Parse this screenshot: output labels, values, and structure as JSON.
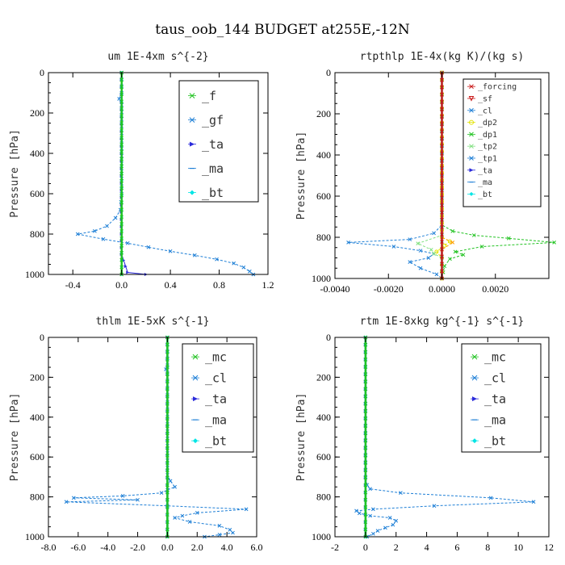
{
  "title": "taus_oob_144  BUDGET at255E,-12N",
  "chart_data": [
    {
      "type": "line",
      "title": "um  1E-4xm s^{-2}",
      "ylabel": "Pressure [hPa]",
      "xlim": [
        -0.6,
        1.2
      ],
      "ylim": [
        1000,
        0
      ],
      "xticks": [
        -0.4,
        0.0,
        0.4,
        0.8,
        1.2
      ],
      "xtick_labels": [
        "-0.4",
        "0.0",
        "0.4",
        "0.8",
        "1.2"
      ],
      "yticks": [
        0,
        200,
        400,
        600,
        800,
        1000
      ],
      "ytick_labels": [
        "0",
        "200",
        "400",
        "600",
        "800",
        "1000"
      ],
      "legend_placement": "top-right",
      "legend_entries": [
        "_f",
        "_gf",
        "_ta",
        "_ma",
        "_bt"
      ],
      "series": [
        {
          "name": "_gf",
          "color": "#1e7fd6",
          "dashed": true,
          "points": [
            [
              0.0,
              0
            ],
            [
              0.0,
              100
            ],
            [
              -0.02,
              130
            ],
            [
              0.0,
              160
            ],
            [
              0.0,
              300
            ],
            [
              0.0,
              600
            ],
            [
              -0.01,
              680
            ],
            [
              -0.05,
              720
            ],
            [
              -0.12,
              760
            ],
            [
              -0.22,
              785
            ],
            [
              -0.36,
              800
            ],
            [
              -0.15,
              825
            ],
            [
              0.05,
              845
            ],
            [
              0.22,
              865
            ],
            [
              0.4,
              885
            ],
            [
              0.6,
              905
            ],
            [
              0.78,
              925
            ],
            [
              0.92,
              945
            ],
            [
              1.0,
              965
            ],
            [
              1.05,
              985
            ],
            [
              1.08,
              1000
            ]
          ]
        },
        {
          "name": "_ta",
          "color": "#2b2bdb",
          "dashed": false,
          "points": [
            [
              0.0,
              0
            ],
            [
              0.0,
              800
            ],
            [
              0.0,
              900
            ],
            [
              0.05,
              990
            ],
            [
              0.2,
              1000
            ]
          ]
        },
        {
          "name": "_bt",
          "color": "#00e5e5",
          "dashed": false,
          "points": [
            [
              0.0,
              0
            ],
            [
              0.0,
              1000
            ]
          ]
        },
        {
          "name": "_f",
          "color": "#22c322",
          "dashed": false,
          "points": [
            [
              0.0,
              0
            ],
            [
              0.0,
              1000
            ]
          ]
        }
      ]
    },
    {
      "type": "line",
      "title": "rtpthlp  1E-4x(kg K)/(kg s)",
      "ylabel": "Pressure [hPa]",
      "xlim": [
        -0.004,
        0.004
      ],
      "ylim": [
        1000,
        0
      ],
      "xticks": [
        -0.004,
        -0.002,
        0.0,
        0.002
      ],
      "xtick_labels": [
        "-0.0040",
        "-0.0020",
        "0.0000",
        "0.0020"
      ],
      "yticks": [
        0,
        200,
        400,
        600,
        800,
        1000
      ],
      "ytick_labels": [
        "0",
        "200",
        "400",
        "600",
        "800",
        "1000"
      ],
      "legend_placement": "top-right",
      "legend_entries": [
        "_forcing",
        "_sf",
        "_cl",
        "_dp2",
        "_dp1",
        "_tp2",
        "_tp1",
        "_ta",
        "_ma",
        "_bt"
      ],
      "series": [
        {
          "name": "_dp1",
          "color": "#22c322",
          "dashed": true,
          "points": [
            [
              0.0,
              0
            ],
            [
              0.0,
              740
            ],
            [
              0.0004,
              770
            ],
            [
              0.0012,
              790
            ],
            [
              0.0025,
              805
            ],
            [
              0.0042,
              825
            ],
            [
              0.0015,
              845
            ],
            [
              0.0005,
              870
            ],
            [
              0.0008,
              885
            ],
            [
              0.0003,
              905
            ],
            [
              0.0001,
              940
            ],
            [
              0.0,
              1000
            ]
          ]
        },
        {
          "name": "_tp1",
          "color": "#1e7fd6",
          "dashed": true,
          "points": [
            [
              0.0,
              0
            ],
            [
              0.0,
              740
            ],
            [
              -0.0003,
              780
            ],
            [
              -0.0012,
              810
            ],
            [
              -0.0035,
              825
            ],
            [
              -0.0018,
              845
            ],
            [
              -0.0008,
              865
            ],
            [
              -0.0003,
              880
            ],
            [
              -0.0005,
              900
            ],
            [
              -0.0012,
              920
            ],
            [
              -0.0008,
              950
            ],
            [
              -0.0002,
              980
            ],
            [
              0.0,
              1000
            ]
          ]
        },
        {
          "name": "_dp2",
          "color": "#e3e300",
          "dashed": true,
          "points": [
            [
              0.0,
              0
            ],
            [
              0.0,
              800
            ],
            [
              0.0003,
              820
            ],
            [
              0.0001,
              840
            ],
            [
              -0.0002,
              870
            ],
            [
              0.0,
              900
            ],
            [
              0.0,
              1000
            ]
          ]
        },
        {
          "name": "_cl",
          "color": "#ff9d00",
          "dashed": true,
          "points": [
            [
              0.0,
              0
            ],
            [
              0.0,
              800
            ],
            [
              0.0004,
              825
            ],
            [
              0.0,
              860
            ],
            [
              0.0,
              1000
            ]
          ]
        },
        {
          "name": "_tp2",
          "color": "#7fe07f",
          "dashed": true,
          "points": [
            [
              0.0,
              0
            ],
            [
              0.0,
              790
            ],
            [
              -0.0009,
              830
            ],
            [
              -0.0004,
              860
            ],
            [
              -0.0003,
              880
            ],
            [
              0.0,
              900
            ],
            [
              0.0,
              1000
            ]
          ]
        },
        {
          "name": "_bt",
          "color": "#00e5e5",
          "dashed": false,
          "points": [
            [
              0.0,
              0
            ],
            [
              0.0,
              1000
            ]
          ]
        },
        {
          "name": "_forcing",
          "color": "#c81414",
          "dashed": false,
          "points": [
            [
              0.0,
              0
            ],
            [
              0.0,
              1000
            ]
          ]
        }
      ]
    },
    {
      "type": "line",
      "title": "thlm  1E-5xK s^{-1}",
      "ylabel": "Pressure [hPa]",
      "xlim": [
        -8.0,
        6.0
      ],
      "ylim": [
        1000,
        0
      ],
      "xticks": [
        -8.0,
        -6.0,
        -4.0,
        -2.0,
        0.0,
        2.0,
        4.0,
        6.0
      ],
      "xtick_labels": [
        "-8.0",
        "-6.0",
        "-4.0",
        "-2.0",
        "0.0",
        "2.0",
        "4.0",
        "6.0"
      ],
      "yticks": [
        0,
        200,
        400,
        600,
        800,
        1000
      ],
      "ytick_labels": [
        "0",
        "200",
        "400",
        "600",
        "800",
        "1000"
      ],
      "legend_placement": "top-right",
      "legend_entries": [
        "_mc",
        "_cl",
        "_ta",
        "_ma",
        "_bt"
      ],
      "series": [
        {
          "name": "_cl",
          "color": "#1e7fd6",
          "dashed": true,
          "points": [
            [
              0.0,
              0
            ],
            [
              0.0,
              140
            ],
            [
              -0.1,
              160
            ],
            [
              0.0,
              180
            ],
            [
              0.0,
              690
            ],
            [
              0.2,
              720
            ],
            [
              0.5,
              750
            ],
            [
              0.0,
              765
            ],
            [
              -0.4,
              780
            ],
            [
              -3.0,
              795
            ],
            [
              -6.3,
              805
            ],
            [
              -2.0,
              815
            ],
            [
              -6.8,
              825
            ],
            [
              0.0,
              845
            ],
            [
              5.3,
              862
            ],
            [
              2.0,
              880
            ],
            [
              1.0,
              895
            ],
            [
              0.5,
              905
            ],
            [
              1.5,
              925
            ],
            [
              3.5,
              945
            ],
            [
              4.2,
              965
            ],
            [
              4.4,
              980
            ],
            [
              3.5,
              990
            ],
            [
              2.5,
              1000
            ]
          ]
        },
        {
          "name": "_ta",
          "color": "#2b2bdb",
          "dashed": false,
          "points": [
            [
              0.0,
              0
            ],
            [
              0.0,
              1000
            ]
          ]
        },
        {
          "name": "_bt",
          "color": "#00e5e5",
          "dashed": false,
          "points": [
            [
              0.0,
              0
            ],
            [
              0.0,
              1000
            ]
          ]
        },
        {
          "name": "_mc",
          "color": "#22c322",
          "dashed": false,
          "points": [
            [
              0.0,
              0
            ],
            [
              0.0,
              1000
            ]
          ]
        }
      ]
    },
    {
      "type": "line",
      "title": "rtm  1E-8xkg kg^{-1} s^{-1}",
      "ylabel": "Pressure [hPa]",
      "xlim": [
        -2,
        12
      ],
      "ylim": [
        1000,
        0
      ],
      "xticks": [
        -2,
        0,
        2,
        4,
        6,
        8,
        10,
        12
      ],
      "xtick_labels": [
        "-2",
        "0",
        "2",
        "4",
        "6",
        "8",
        "10",
        "12"
      ],
      "yticks": [
        0,
        200,
        400,
        600,
        800,
        1000
      ],
      "ytick_labels": [
        "0",
        "200",
        "400",
        "600",
        "800",
        "1000"
      ],
      "legend_placement": "top-right",
      "legend_entries": [
        "_mc",
        "_cl",
        "_ta",
        "_ma",
        "_bt"
      ],
      "series": [
        {
          "name": "_cl",
          "color": "#1e7fd6",
          "dashed": true,
          "points": [
            [
              0.0,
              0
            ],
            [
              0.0,
              700
            ],
            [
              0.1,
              740
            ],
            [
              0.3,
              760
            ],
            [
              2.3,
              780
            ],
            [
              8.2,
              805
            ],
            [
              11.0,
              825
            ],
            [
              4.5,
              845
            ],
            [
              0.5,
              862
            ],
            [
              -0.6,
              870
            ],
            [
              -0.4,
              882
            ],
            [
              0.3,
              895
            ],
            [
              1.6,
              905
            ],
            [
              2.0,
              920
            ],
            [
              1.8,
              940
            ],
            [
              1.3,
              955
            ],
            [
              0.8,
              970
            ],
            [
              0.5,
              985
            ],
            [
              0.1,
              1000
            ]
          ]
        },
        {
          "name": "_ta",
          "color": "#2b2bdb",
          "dashed": false,
          "points": [
            [
              0.0,
              0
            ],
            [
              0.0,
              1000
            ]
          ]
        },
        {
          "name": "_bt",
          "color": "#00e5e5",
          "dashed": false,
          "points": [
            [
              0.0,
              0
            ],
            [
              0.0,
              1000
            ]
          ]
        },
        {
          "name": "_mc",
          "color": "#22c322",
          "dashed": false,
          "points": [
            [
              0.0,
              0
            ],
            [
              0.0,
              1000
            ]
          ]
        }
      ]
    }
  ],
  "legend_styles": {
    "_f": {
      "color": "#22c322",
      "marker": "x"
    },
    "_gf": {
      "color": "#1e7fd6",
      "marker": "x"
    },
    "_ta": {
      "color": "#2b2bdb",
      "marker": "arrow"
    },
    "_ma": {
      "color": "#1e7fd6",
      "marker": "dash"
    },
    "_bt": {
      "color": "#00e5e5",
      "marker": "diamond"
    },
    "_mc": {
      "color": "#22c322",
      "marker": "x"
    },
    "_cl": {
      "color": "#1e7fd6",
      "marker": "x"
    },
    "_forcing": {
      "color": "#c81414",
      "marker": "x"
    },
    "_sf": {
      "color": "#c81414",
      "marker": "tri"
    },
    "_dp2": {
      "color": "#e3e300",
      "marker": "circle"
    },
    "_dp1": {
      "color": "#22c322",
      "marker": "x"
    },
    "_tp2": {
      "color": "#7fe07f",
      "marker": "x"
    },
    "_tp1": {
      "color": "#1e7fd6",
      "marker": "x"
    }
  }
}
